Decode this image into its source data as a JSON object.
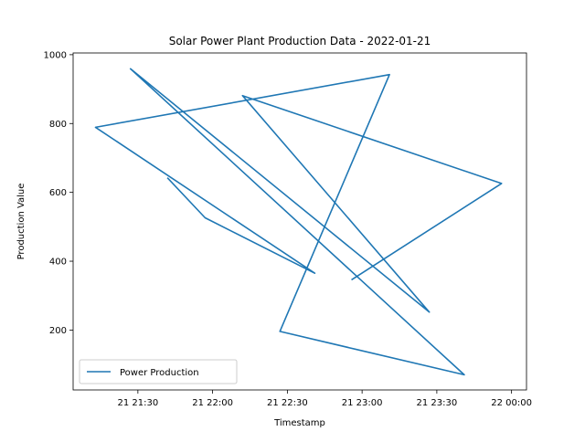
{
  "chart_data": {
    "type": "line",
    "title": "Solar Power Plant Production Data - 2022-01-21",
    "xlabel": "Timestamp",
    "ylabel": "Production Value",
    "xlim": [
      "2022-01-21 21:04",
      "2022-01-22 00:06"
    ],
    "ylim": [
      26,
      1005
    ],
    "x_tick_labels": [
      "21 21:30",
      "21 22:00",
      "21 22:30",
      "21 23:00",
      "21 23:30",
      "22 00:00"
    ],
    "y_tick_labels": [
      "200",
      "400",
      "600",
      "800",
      "1000"
    ],
    "x_ticks": [
      "2022-01-21 21:30",
      "2022-01-21 22:00",
      "2022-01-21 22:30",
      "2022-01-21 23:00",
      "2022-01-21 23:30",
      "2022-01-22 00:00"
    ],
    "y_ticks": [
      200,
      400,
      600,
      800,
      1000
    ],
    "legend": {
      "position": "lower-left",
      "entries": [
        "Power Production"
      ]
    },
    "grid": false,
    "series": [
      {
        "name": "Power Production",
        "color": "#1f77b4",
        "x": [
          "2022-01-21 21:42",
          "2022-01-21 21:57",
          "2022-01-21 22:41",
          "2022-01-21 21:13",
          "2022-01-21 23:11",
          "2022-01-21 22:27",
          "2022-01-21 23:41",
          "2022-01-21 21:27",
          "2022-01-21 23:27",
          "2022-01-21 22:12",
          "2022-01-21 23:56",
          "2022-01-21 22:56"
        ],
        "values": [
          641,
          526,
          365,
          789,
          942,
          196,
          70,
          959,
          252,
          881,
          626,
          347
        ]
      }
    ]
  }
}
